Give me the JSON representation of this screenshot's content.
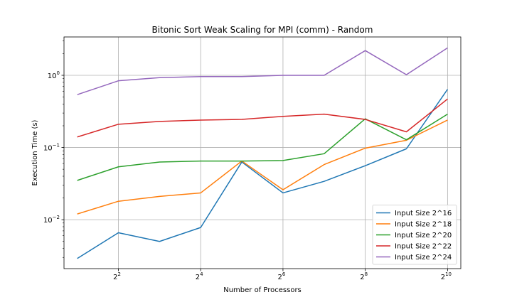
{
  "chart_data": {
    "type": "line",
    "title": "Bitonic Sort Weak Scaling for MPI (comm) - Random",
    "xlabel": "Number of Processors",
    "ylabel": "Execution Time (s)",
    "x_scale": "log2",
    "y_scale": "log10",
    "x": [
      2,
      4,
      8,
      16,
      32,
      64,
      128,
      256,
      512,
      1024
    ],
    "xlim": [
      1.6,
      1280
    ],
    "ylim": [
      0.0021,
      3.4
    ],
    "grid": true,
    "legend_position": "lower-right",
    "x_ticks": [
      {
        "value": 4,
        "base": "2",
        "exp": "2"
      },
      {
        "value": 16,
        "base": "2",
        "exp": "4"
      },
      {
        "value": 64,
        "base": "2",
        "exp": "6"
      },
      {
        "value": 256,
        "base": "2",
        "exp": "8"
      },
      {
        "value": 1024,
        "base": "2",
        "exp": "10"
      }
    ],
    "y_ticks": [
      {
        "value": 0.01,
        "base": "10",
        "exp": "−2"
      },
      {
        "value": 0.1,
        "base": "10",
        "exp": "−1"
      },
      {
        "value": 1,
        "base": "10",
        "exp": "0"
      }
    ],
    "series": [
      {
        "name": "Input Size 2^16",
        "color": "#1f77b4",
        "values": [
          0.0029,
          0.0066,
          0.005,
          0.0078,
          0.063,
          0.0235,
          0.034,
          0.056,
          0.096,
          0.64
        ]
      },
      {
        "name": "Input Size 2^18",
        "color": "#ff7f0e",
        "values": [
          0.012,
          0.018,
          0.021,
          0.0235,
          0.065,
          0.026,
          0.058,
          0.098,
          0.126,
          0.24
        ]
      },
      {
        "name": "Input Size 2^20",
        "color": "#2ca02c",
        "values": [
          0.035,
          0.054,
          0.063,
          0.065,
          0.065,
          0.066,
          0.082,
          0.25,
          0.128,
          0.29
        ]
      },
      {
        "name": "Input Size 2^22",
        "color": "#d62728",
        "values": [
          0.14,
          0.21,
          0.23,
          0.24,
          0.245,
          0.27,
          0.29,
          0.245,
          0.165,
          0.47
        ]
      },
      {
        "name": "Input Size 2^24",
        "color": "#9467bd",
        "values": [
          0.54,
          0.84,
          0.93,
          0.96,
          0.96,
          1.0,
          1.0,
          2.2,
          1.02,
          2.4
        ]
      }
    ]
  }
}
